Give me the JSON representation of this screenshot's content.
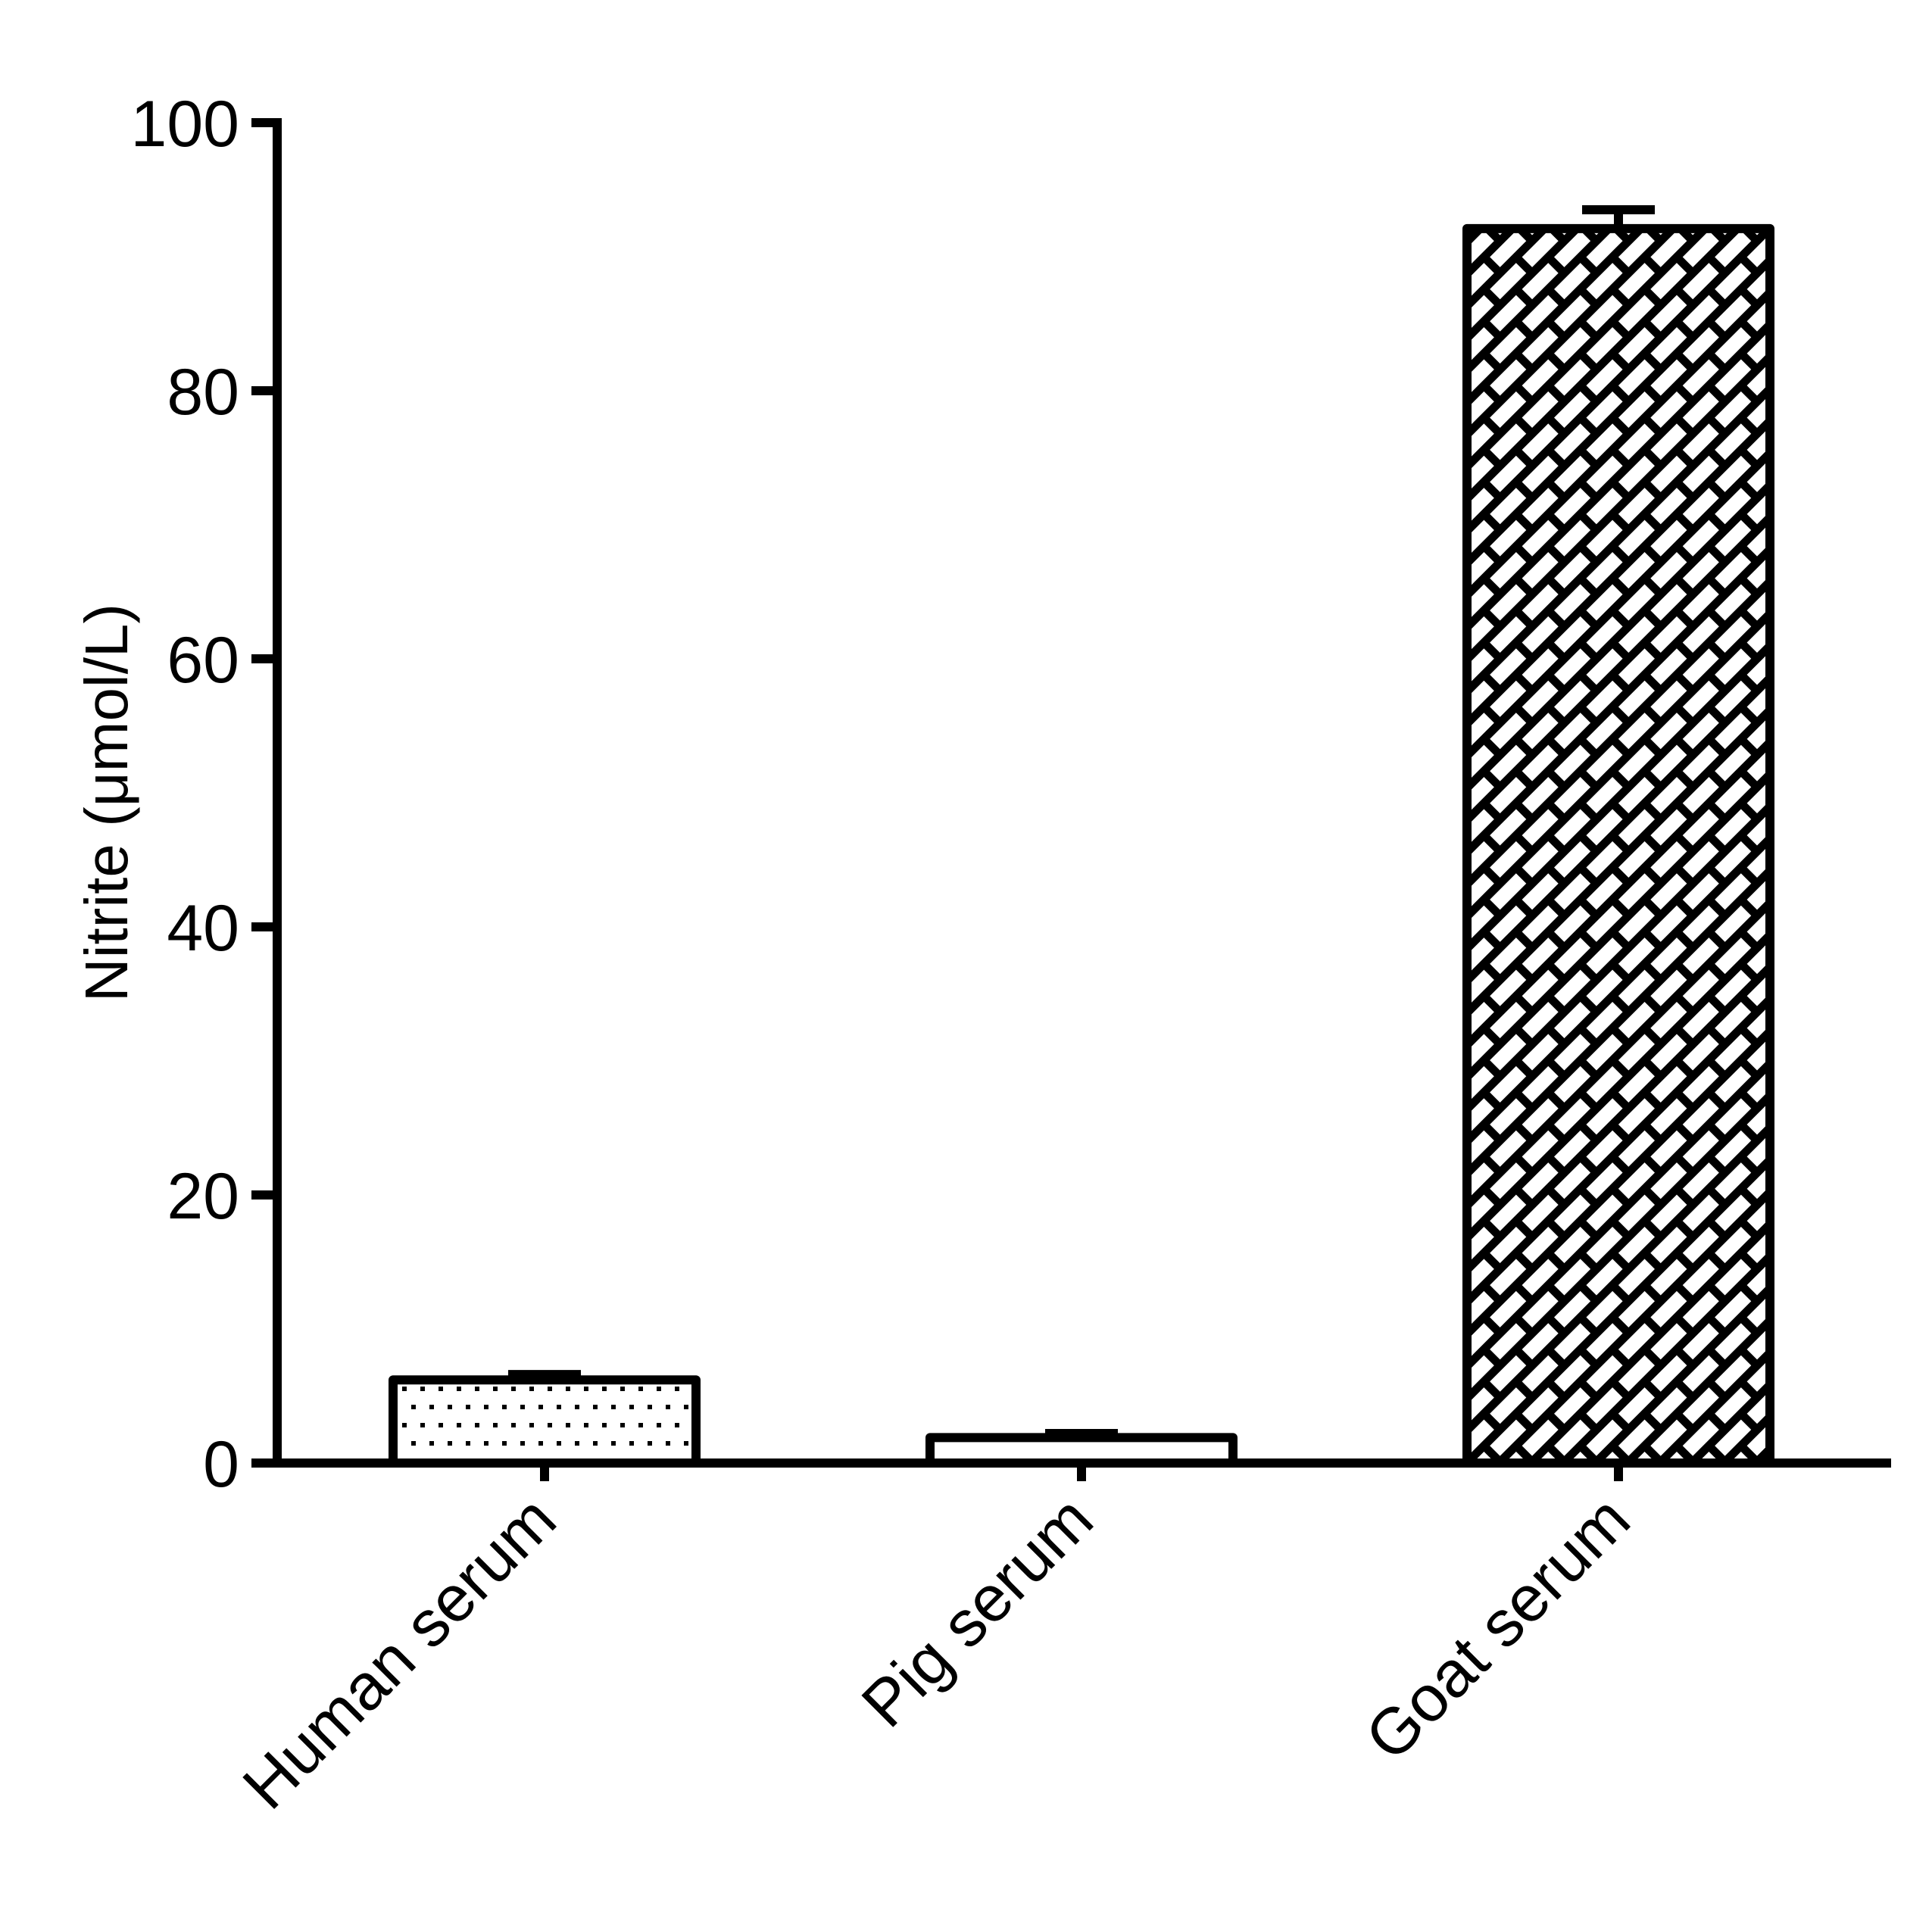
{
  "chart_data": {
    "type": "bar",
    "title": "",
    "xlabel": "",
    "ylabel": "Nitrite (μmol/L)",
    "categories": [
      "Human serum",
      "Pig serum",
      "Goat serum"
    ],
    "values": [
      6.2,
      1.9,
      92.1
    ],
    "error_bars_upper": [
      0.4,
      0.3,
      1.4
    ],
    "patterns": [
      "dots",
      "none",
      "brick-diagonal"
    ],
    "ylim": [
      0,
      100
    ],
    "yticks": [
      0,
      20,
      40,
      60,
      80,
      100
    ],
    "grid": false,
    "legend": null
  },
  "colors": {
    "stroke": "#000000",
    "fill": "#ffffff"
  }
}
